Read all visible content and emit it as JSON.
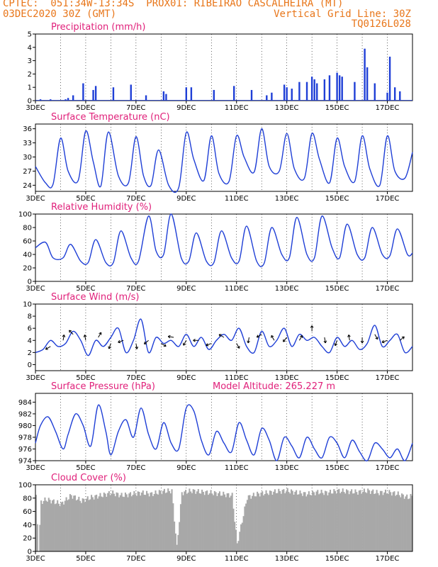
{
  "header": {
    "line1_left": "CPTEC:  051:34W-13:34S  PROX01: RIBEIRAO CASCALHEIRA (MT)",
    "line2_left": "03DEC2020 30Z (GMT)",
    "line2_right": "Vertical Grid Line: 30Z",
    "line3_right": "TQ0126L028"
  },
  "colors": {
    "header": "#e8761a",
    "panel_title": "#e0207a",
    "series": "#1f3fd6",
    "cloud": "#a8a8a8",
    "arrow": "#000000"
  },
  "x_days": [
    3,
    18
  ],
  "x_labels": [
    "3DEC",
    "5DEC",
    "7DEC",
    "9DEC",
    "11DEC",
    "13DEC",
    "15DEC",
    "17DEC"
  ],
  "chart_data": [
    {
      "type": "bar",
      "title": "Precipitation (mm/h)",
      "ylim": [
        0,
        5
      ],
      "yticks": [
        "0",
        "1",
        "2",
        "3",
        "4",
        "5"
      ],
      "x": [
        3.2,
        3.6,
        4.2,
        4.3,
        4.5,
        4.9,
        5.3,
        5.4,
        6.1,
        6.8,
        7.4,
        8.1,
        8.2,
        9.0,
        9.2,
        10.1,
        10.9,
        11.6,
        12.2,
        12.4,
        12.9,
        13.0,
        13.2,
        13.5,
        13.8,
        14.0,
        14.1,
        14.2,
        14.5,
        14.7,
        15.0,
        15.1,
        15.2,
        15.7,
        16.1,
        16.2,
        16.5,
        17.0,
        17.1,
        17.3,
        17.5
      ],
      "values": [
        0.1,
        0.1,
        0.1,
        0.2,
        0.4,
        1.3,
        0.8,
        1.1,
        1.0,
        1.2,
        0.4,
        0.7,
        0.5,
        1.0,
        1.0,
        0.8,
        1.1,
        0.8,
        0.4,
        0.6,
        1.2,
        1.0,
        0.9,
        1.4,
        1.4,
        1.8,
        1.6,
        1.3,
        1.6,
        1.9,
        2.1,
        1.9,
        1.8,
        1.4,
        3.9,
        2.5,
        1.3,
        0.6,
        3.3,
        1.0,
        0.7
      ]
    },
    {
      "type": "line",
      "title": "Surface Temperature (nC)",
      "ylim": [
        22.7,
        37
      ],
      "yticks": [
        "24",
        "27",
        "30",
        "33",
        "36"
      ],
      "x": [
        3.0,
        3.4,
        3.7,
        4.0,
        4.3,
        4.7,
        5.0,
        5.3,
        5.6,
        5.9,
        6.3,
        6.7,
        7.0,
        7.3,
        7.6,
        7.9,
        8.3,
        8.7,
        9.0,
        9.3,
        9.7,
        10.0,
        10.3,
        10.7,
        11.0,
        11.3,
        11.7,
        12.0,
        12.3,
        12.7,
        13.0,
        13.3,
        13.7,
        14.0,
        14.3,
        14.7,
        15.0,
        15.3,
        15.7,
        16.0,
        16.3,
        16.7,
        17.0,
        17.3,
        17.7,
        18.0
      ],
      "values": [
        28.0,
        24.5,
        24.2,
        34.0,
        27.0,
        25.0,
        35.5,
        29.0,
        23.8,
        35.3,
        26.0,
        24.5,
        34.3,
        26.0,
        24.0,
        31.5,
        24.0,
        23.5,
        35.2,
        29.5,
        25.0,
        34.5,
        26.5,
        24.8,
        34.5,
        30.0,
        26.8,
        36.0,
        28.0,
        27.0,
        35.0,
        27.5,
        25.5,
        35.0,
        29.5,
        24.5,
        34.0,
        28.0,
        24.8,
        34.5,
        27.5,
        24.0,
        34.5,
        27.0,
        25.5,
        31.0
      ]
    },
    {
      "type": "line",
      "title": "Relative Humidity (%)",
      "ylim": [
        0,
        100
      ],
      "yticks": [
        "0",
        "20",
        "40",
        "60",
        "80",
        "100"
      ],
      "x": [
        3.0,
        3.4,
        3.7,
        4.1,
        4.4,
        4.8,
        5.1,
        5.4,
        5.8,
        6.1,
        6.4,
        6.8,
        7.1,
        7.5,
        7.8,
        8.1,
        8.4,
        8.8,
        9.1,
        9.4,
        9.8,
        10.1,
        10.4,
        10.8,
        11.1,
        11.4,
        11.8,
        12.1,
        12.4,
        12.8,
        13.1,
        13.4,
        13.8,
        14.1,
        14.4,
        14.8,
        15.1,
        15.4,
        15.8,
        16.1,
        16.4,
        16.8,
        17.1,
        17.4,
        17.8,
        18.0
      ],
      "values": [
        50.0,
        58.0,
        35.0,
        35.0,
        55.0,
        30.0,
        28.0,
        62.0,
        28.0,
        28.0,
        75.0,
        35.0,
        30.0,
        97.0,
        45.0,
        40.0,
        100.0,
        35.0,
        30.0,
        72.0,
        30.0,
        28.0,
        75.0,
        35.0,
        30.0,
        82.0,
        30.0,
        27.0,
        80.0,
        40.0,
        35.0,
        95.0,
        40.0,
        35.0,
        97.0,
        50.0,
        35.0,
        85.0,
        40.0,
        35.0,
        80.0,
        40.0,
        38.0,
        78.0,
        40.0,
        42.0
      ]
    },
    {
      "type": "line",
      "title": "Surface Wind (m/s)",
      "ylim": [
        -1,
        10
      ],
      "yticks": [
        "0",
        "2",
        "4",
        "6",
        "8",
        "10"
      ],
      "x": [
        3.0,
        3.3,
        3.6,
        3.9,
        4.2,
        4.5,
        4.8,
        5.1,
        5.4,
        5.7,
        6.0,
        6.3,
        6.6,
        6.9,
        7.2,
        7.5,
        7.8,
        8.1,
        8.4,
        8.7,
        9.0,
        9.3,
        9.6,
        9.9,
        10.2,
        10.5,
        10.8,
        11.1,
        11.4,
        11.7,
        12.0,
        12.3,
        12.6,
        12.9,
        13.2,
        13.5,
        13.8,
        14.1,
        14.4,
        14.7,
        15.0,
        15.3,
        15.6,
        15.9,
        16.2,
        16.5,
        16.8,
        17.1,
        17.4,
        17.7,
        18.0
      ],
      "values": [
        2.0,
        2.5,
        4.0,
        3.0,
        3.5,
        5.5,
        4.0,
        1.5,
        4.0,
        3.0,
        4.5,
        6.0,
        2.0,
        4.0,
        7.5,
        2.0,
        4.5,
        3.5,
        4.0,
        3.0,
        5.0,
        3.0,
        4.5,
        2.5,
        4.0,
        5.0,
        4.0,
        6.0,
        3.0,
        2.0,
        5.5,
        3.0,
        4.0,
        6.0,
        3.0,
        5.0,
        4.0,
        4.5,
        3.0,
        2.0,
        4.5,
        3.0,
        4.0,
        2.5,
        3.5,
        6.5,
        3.0,
        4.0,
        5.0,
        2.0,
        3.0
      ],
      "arrows": {
        "x": [
          3.6,
          4.1,
          4.5,
          5.0,
          5.5,
          6.0,
          6.5,
          7.0,
          7.5,
          8.0,
          8.5,
          9.0,
          9.5,
          10.0,
          10.5,
          11.0,
          11.5,
          12.0,
          12.5,
          13.0,
          13.5,
          14.0,
          14.5,
          15.0,
          15.5,
          16.0,
          16.5,
          17.0,
          17.5
        ],
        "y": [
          3.0,
          4.0,
          5.0,
          4.0,
          4.5,
          3.5,
          4.0,
          3.5,
          4.0,
          3.5,
          4.5,
          4.0,
          4.0,
          3.5,
          4.5,
          3.5,
          4.5,
          5.0,
          4.0,
          4.5,
          4.0,
          5.5,
          4.5,
          4.0,
          4.0,
          4.5,
          5.0,
          4.0,
          4.0
        ],
        "angle": [
          210,
          80,
          135,
          100,
          60,
          250,
          200,
          280,
          220,
          330,
          170,
          240,
          180,
          200,
          150,
          300,
          260,
          210,
          120,
          230,
          60,
          90,
          280,
          250,
          100,
          270,
          300,
          200,
          40
        ]
      }
    },
    {
      "type": "line",
      "title": "Surface Pressure (hPa)",
      "annotation": "Model Altitude: 265.227  m",
      "ylim": [
        974,
        985.5
      ],
      "yticks": [
        "974",
        "976",
        "978",
        "980",
        "982",
        "984"
      ],
      "x": [
        3.0,
        3.2,
        3.5,
        3.8,
        4.1,
        4.3,
        4.6,
        4.9,
        5.2,
        5.5,
        5.8,
        6.0,
        6.3,
        6.6,
        6.9,
        7.2,
        7.5,
        7.8,
        8.1,
        8.4,
        8.7,
        9.0,
        9.3,
        9.6,
        9.9,
        10.2,
        10.5,
        10.8,
        11.1,
        11.4,
        11.7,
        12.0,
        12.3,
        12.6,
        12.9,
        13.2,
        13.5,
        13.8,
        14.1,
        14.4,
        14.7,
        15.0,
        15.3,
        15.6,
        15.9,
        16.2,
        16.5,
        16.8,
        17.1,
        17.4,
        17.7,
        18.0
      ],
      "values": [
        977.0,
        980.0,
        981.5,
        979.0,
        976.0,
        978.5,
        982.0,
        980.0,
        976.5,
        983.5,
        979.0,
        975.0,
        979.0,
        981.0,
        978.0,
        983.0,
        978.5,
        976.0,
        980.5,
        977.0,
        976.0,
        983.0,
        982.5,
        977.5,
        975.0,
        979.0,
        977.0,
        975.5,
        980.5,
        977.5,
        975.0,
        979.5,
        977.5,
        974.0,
        978.0,
        976.5,
        974.5,
        978.0,
        976.0,
        974.5,
        978.0,
        977.0,
        974.5,
        977.5,
        975.5,
        974.0,
        977.0,
        976.0,
        974.5,
        976.0,
        974.0,
        977.0
      ]
    },
    {
      "type": "area",
      "title": "Cloud Cover (%)",
      "ylim": [
        0,
        100
      ],
      "yticks": [
        "0",
        "20",
        "40",
        "60",
        "80",
        "100"
      ],
      "x": [
        3.0,
        3.1,
        3.2,
        3.4,
        3.6,
        4.0,
        4.4,
        4.8,
        5.2,
        5.6,
        6.0,
        6.4,
        6.8,
        7.2,
        7.6,
        8.0,
        8.4,
        8.6,
        8.8,
        9.2,
        9.6,
        10.0,
        10.4,
        10.8,
        11.0,
        11.4,
        11.8,
        12.2,
        12.6,
        13.0,
        13.4,
        13.8,
        14.2,
        14.6,
        15.0,
        15.4,
        15.8,
        16.2,
        16.6,
        17.0,
        17.4,
        17.8,
        18.0
      ],
      "values": [
        85,
        5,
        78,
        82,
        80,
        75,
        88,
        80,
        85,
        88,
        92,
        88,
        90,
        92,
        90,
        94,
        95,
        10,
        92,
        95,
        93,
        92,
        90,
        88,
        15,
        85,
        90,
        92,
        94,
        95,
        92,
        90,
        93,
        92,
        95,
        94,
        93,
        95,
        92,
        93,
        90,
        85,
        88
      ]
    }
  ]
}
